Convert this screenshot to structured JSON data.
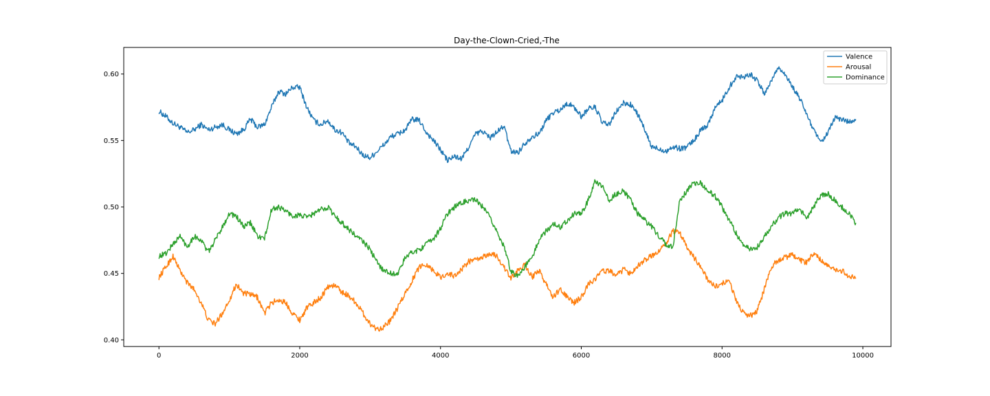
{
  "chart_data": {
    "type": "line",
    "title": "Day-the-Clown-Cried,-The",
    "xlabel": "",
    "ylabel": "",
    "xlim": [
      -500,
      10400
    ],
    "ylim": [
      0.395,
      0.62
    ],
    "xticks": [
      0,
      2000,
      4000,
      6000,
      8000,
      10000
    ],
    "xtick_labels": [
      "0",
      "2000",
      "4000",
      "6000",
      "8000",
      "10000"
    ],
    "yticks": [
      0.4,
      0.45,
      0.5,
      0.55,
      0.6
    ],
    "ytick_labels": [
      "0.40",
      "0.45",
      "0.50",
      "0.55",
      "0.60"
    ],
    "grid": false,
    "legend": "top-right",
    "x": [
      0,
      100,
      200,
      300,
      400,
      500,
      600,
      700,
      800,
      900,
      1000,
      1100,
      1200,
      1300,
      1400,
      1500,
      1600,
      1700,
      1800,
      1900,
      2000,
      2100,
      2200,
      2300,
      2400,
      2500,
      2600,
      2700,
      2800,
      2900,
      3000,
      3100,
      3200,
      3300,
      3400,
      3500,
      3600,
      3700,
      3800,
      3900,
      4000,
      4100,
      4200,
      4300,
      4400,
      4500,
      4600,
      4700,
      4800,
      4900,
      5000,
      5100,
      5200,
      5300,
      5400,
      5500,
      5600,
      5700,
      5800,
      5900,
      6000,
      6100,
      6200,
      6300,
      6400,
      6500,
      6600,
      6700,
      6800,
      6900,
      7000,
      7100,
      7200,
      7300,
      7400,
      7500,
      7600,
      7700,
      7800,
      7900,
      8000,
      8100,
      8200,
      8300,
      8400,
      8500,
      8600,
      8700,
      8800,
      8900,
      9000,
      9100,
      9200,
      9300,
      9400,
      9500,
      9600,
      9700,
      9800,
      9900
    ],
    "series": [
      {
        "name": "Valence",
        "color": "#1f77b4",
        "values": [
          0.572,
          0.568,
          0.563,
          0.56,
          0.556,
          0.558,
          0.562,
          0.558,
          0.56,
          0.562,
          0.558,
          0.555,
          0.558,
          0.566,
          0.56,
          0.562,
          0.575,
          0.587,
          0.585,
          0.59,
          0.59,
          0.575,
          0.565,
          0.562,
          0.565,
          0.558,
          0.556,
          0.548,
          0.545,
          0.539,
          0.537,
          0.542,
          0.547,
          0.553,
          0.555,
          0.558,
          0.566,
          0.565,
          0.556,
          0.55,
          0.543,
          0.535,
          0.538,
          0.536,
          0.545,
          0.555,
          0.557,
          0.552,
          0.556,
          0.561,
          0.542,
          0.541,
          0.548,
          0.553,
          0.555,
          0.565,
          0.571,
          0.573,
          0.578,
          0.575,
          0.568,
          0.574,
          0.575,
          0.563,
          0.562,
          0.572,
          0.578,
          0.577,
          0.57,
          0.558,
          0.545,
          0.544,
          0.542,
          0.545,
          0.544,
          0.545,
          0.55,
          0.558,
          0.562,
          0.575,
          0.58,
          0.59,
          0.598,
          0.598,
          0.6,
          0.595,
          0.585,
          0.595,
          0.605,
          0.6,
          0.59,
          0.582,
          0.57,
          0.558,
          0.548,
          0.555,
          0.567,
          0.566,
          0.564,
          0.566
        ]
      },
      {
        "name": "Arousal",
        "color": "#ff7f0e",
        "values": [
          0.447,
          0.455,
          0.463,
          0.452,
          0.443,
          0.438,
          0.428,
          0.415,
          0.412,
          0.42,
          0.43,
          0.442,
          0.435,
          0.434,
          0.432,
          0.42,
          0.428,
          0.43,
          0.428,
          0.42,
          0.415,
          0.424,
          0.428,
          0.432,
          0.44,
          0.441,
          0.436,
          0.433,
          0.428,
          0.42,
          0.412,
          0.408,
          0.41,
          0.415,
          0.425,
          0.435,
          0.445,
          0.455,
          0.457,
          0.452,
          0.447,
          0.45,
          0.448,
          0.453,
          0.459,
          0.46,
          0.462,
          0.465,
          0.463,
          0.455,
          0.446,
          0.452,
          0.457,
          0.447,
          0.452,
          0.442,
          0.432,
          0.438,
          0.432,
          0.428,
          0.432,
          0.442,
          0.446,
          0.452,
          0.452,
          0.448,
          0.453,
          0.45,
          0.456,
          0.46,
          0.463,
          0.467,
          0.472,
          0.482,
          0.48,
          0.47,
          0.462,
          0.455,
          0.445,
          0.44,
          0.442,
          0.445,
          0.43,
          0.42,
          0.418,
          0.422,
          0.438,
          0.455,
          0.46,
          0.462,
          0.464,
          0.46,
          0.458,
          0.465,
          0.46,
          0.456,
          0.452,
          0.452,
          0.448,
          0.446
        ]
      },
      {
        "name": "Dominance",
        "color": "#2ca02c",
        "values": [
          0.463,
          0.465,
          0.472,
          0.478,
          0.47,
          0.478,
          0.475,
          0.466,
          0.475,
          0.485,
          0.495,
          0.493,
          0.485,
          0.488,
          0.478,
          0.476,
          0.498,
          0.5,
          0.497,
          0.493,
          0.494,
          0.492,
          0.495,
          0.498,
          0.5,
          0.493,
          0.488,
          0.483,
          0.478,
          0.474,
          0.468,
          0.458,
          0.452,
          0.45,
          0.45,
          0.462,
          0.466,
          0.468,
          0.472,
          0.476,
          0.484,
          0.495,
          0.5,
          0.503,
          0.505,
          0.505,
          0.5,
          0.492,
          0.482,
          0.47,
          0.452,
          0.448,
          0.455,
          0.462,
          0.475,
          0.482,
          0.487,
          0.485,
          0.49,
          0.495,
          0.495,
          0.505,
          0.52,
          0.515,
          0.505,
          0.51,
          0.512,
          0.505,
          0.495,
          0.49,
          0.485,
          0.478,
          0.472,
          0.47,
          0.505,
          0.512,
          0.518,
          0.518,
          0.512,
          0.508,
          0.5,
          0.49,
          0.48,
          0.472,
          0.468,
          0.47,
          0.478,
          0.485,
          0.492,
          0.495,
          0.495,
          0.5,
          0.49,
          0.5,
          0.508,
          0.51,
          0.505,
          0.5,
          0.495,
          0.488
        ]
      }
    ]
  }
}
